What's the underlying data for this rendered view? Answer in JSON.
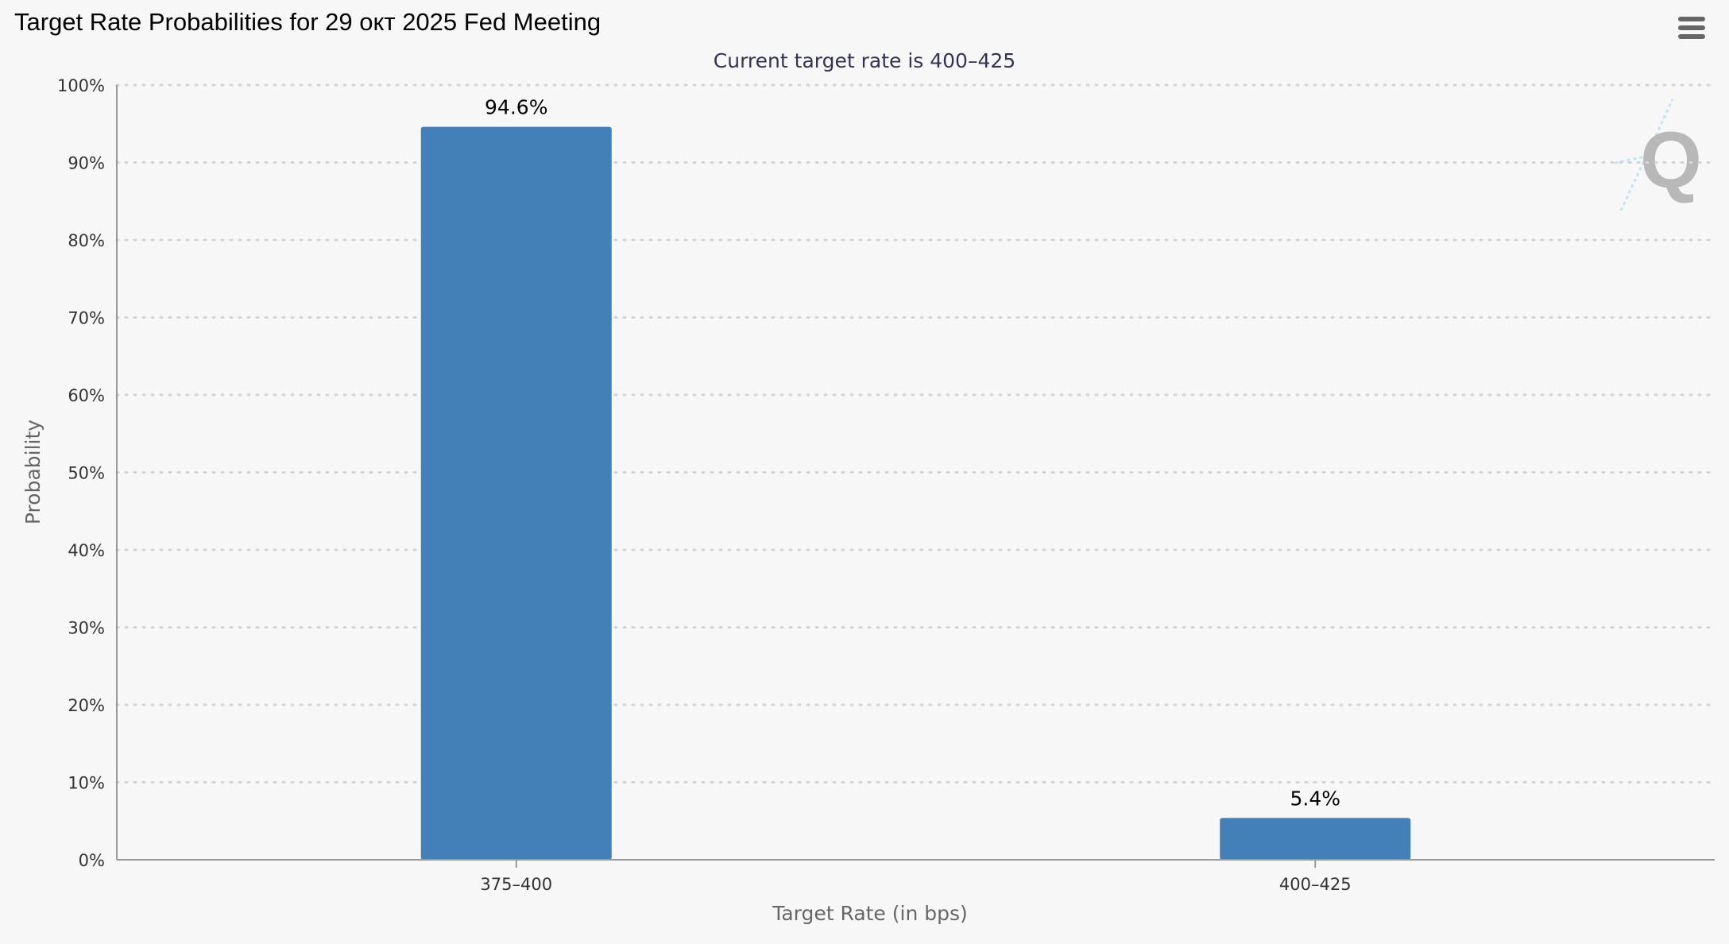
{
  "header": {
    "title": "Target Rate Probabilities for 29 окт 2025 Fed Meeting",
    "menu_icon": "hamburger-menu-icon"
  },
  "watermark": {
    "icon": "q-logo-icon",
    "letter": "Q"
  },
  "colors": {
    "bar": "#4280b7",
    "grid": "#d4d4d4",
    "axis": "#999999",
    "background": "#f7f7f7"
  },
  "chart_data": {
    "type": "bar",
    "subtitle": "Current target rate is 400–425",
    "xlabel": "Target Rate (in bps)",
    "ylabel": "Probability",
    "categories": [
      "375–400",
      "400–425"
    ],
    "values": [
      94.6,
      5.4
    ],
    "data_labels": [
      "94.6%",
      "5.4%"
    ],
    "ylim": [
      0,
      100
    ],
    "yticks": [
      0,
      10,
      20,
      30,
      40,
      50,
      60,
      70,
      80,
      90,
      100
    ],
    "ytick_labels": [
      "0%",
      "10%",
      "20%",
      "30%",
      "40%",
      "50%",
      "60%",
      "70%",
      "80%",
      "90%",
      "100%"
    ],
    "grid": true,
    "legend": "none"
  }
}
